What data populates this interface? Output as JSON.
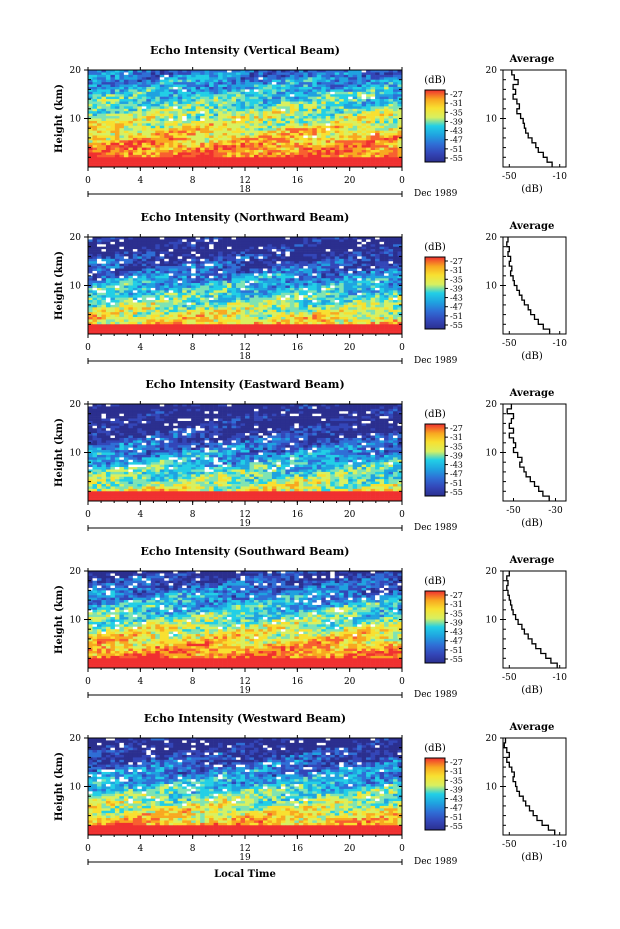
{
  "chart_data": [
    {
      "type": "heatmap",
      "title": "Echo Intensity (Vertical Beam)",
      "ylabel": "Height (km)",
      "ylim": [
        0,
        20
      ],
      "yticks": [
        "20",
        "10"
      ],
      "xlim": [
        0,
        24
      ],
      "xticks": [
        "0",
        "4",
        "8",
        "12",
        "16",
        "20",
        "0"
      ],
      "day_label": "18",
      "date_label": "Dec 1989",
      "colorbar_title": "(dB)",
      "colorbar_ticks": [
        "-27",
        "-31",
        "-35",
        "-39",
        "-43",
        "-47",
        "-51",
        "-55"
      ],
      "profile": {
        "title": "Average",
        "xlabel": "(dB)",
        "xticks": [
          "-50",
          "-10"
        ],
        "xlim": [
          -55,
          -5
        ],
        "ylim": [
          0,
          20
        ],
        "yticks": [
          "20",
          "10"
        ],
        "heights": [
          1,
          2,
          3,
          4,
          5,
          6,
          7,
          8,
          9,
          10,
          11,
          12,
          13,
          14,
          15,
          16,
          17,
          18,
          19,
          20
        ],
        "values": [
          -16,
          -20,
          -23,
          -27,
          -29,
          -32,
          -35,
          -37,
          -38,
          -39,
          -41,
          -44,
          -42,
          -44,
          -47,
          -45,
          -47,
          -43,
          -46,
          -48
        ]
      }
    },
    {
      "type": "heatmap",
      "title": "Echo Intensity (Northward Beam)",
      "ylabel": "Height (km)",
      "ylim": [
        0,
        20
      ],
      "yticks": [
        "20",
        "10"
      ],
      "xlim": [
        0,
        24
      ],
      "xticks": [
        "0",
        "4",
        "8",
        "12",
        "16",
        "20",
        "0"
      ],
      "day_label": "18",
      "date_label": "Dec 1989",
      "colorbar_title": "(dB)",
      "colorbar_ticks": [
        "-27",
        "-31",
        "-35",
        "-39",
        "-43",
        "-47",
        "-51",
        "-55"
      ],
      "profile": {
        "title": "Average",
        "xlabel": "(dB)",
        "xticks": [
          "-50",
          "-10"
        ],
        "xlim": [
          -55,
          -5
        ],
        "ylim": [
          0,
          20
        ],
        "yticks": [
          "20",
          "10"
        ],
        "heights": [
          1,
          2,
          3,
          4,
          5,
          6,
          7,
          8,
          9,
          10,
          11,
          12,
          13,
          14,
          15,
          16,
          17,
          18,
          19,
          20
        ],
        "values": [
          -18,
          -23,
          -27,
          -30,
          -33,
          -35,
          -38,
          -40,
          -42,
          -44,
          -46,
          -47,
          -49,
          -48,
          -50,
          -49,
          -51,
          -50,
          -52,
          -51
        ]
      }
    },
    {
      "type": "heatmap",
      "title": "Echo Intensity (Eastward Beam)",
      "ylabel": "Height (km)",
      "ylim": [
        0,
        20
      ],
      "yticks": [
        "20",
        "10"
      ],
      "xlim": [
        0,
        24
      ],
      "xticks": [
        "0",
        "4",
        "8",
        "12",
        "16",
        "20",
        "0"
      ],
      "day_label": "19",
      "date_label": "Dec 1989",
      "colorbar_title": "(dB)",
      "colorbar_ticks": [
        "-27",
        "-31",
        "-35",
        "-39",
        "-43",
        "-47",
        "-51",
        "-55"
      ],
      "profile": {
        "title": "Average",
        "xlabel": "(dB)",
        "xticks": [
          "-50",
          "-30"
        ],
        "xlim": [
          -55,
          -25
        ],
        "ylim": [
          0,
          20
        ],
        "yticks": [
          "20",
          "10"
        ],
        "heights": [
          1,
          2,
          3,
          4,
          5,
          6,
          7,
          8,
          9,
          10,
          11,
          12,
          13,
          14,
          15,
          16,
          17,
          18,
          19,
          20
        ],
        "values": [
          -33,
          -36,
          -38,
          -40,
          -42,
          -44,
          -45,
          -47,
          -46,
          -48,
          -50,
          -49,
          -50,
          -52,
          -50,
          -52,
          -51,
          -50,
          -53,
          -51
        ]
      }
    },
    {
      "type": "heatmap",
      "title": "Echo Intensity (Southward Beam)",
      "ylabel": "Height (km)",
      "ylim": [
        0,
        20
      ],
      "yticks": [
        "20",
        "10"
      ],
      "xlim": [
        0,
        24
      ],
      "xticks": [
        "0",
        "4",
        "8",
        "12",
        "16",
        "20",
        "0"
      ],
      "day_label": "19",
      "date_label": "Dec 1989",
      "colorbar_title": "(dB)",
      "colorbar_ticks": [
        "-27",
        "-31",
        "-35",
        "-39",
        "-43",
        "-47",
        "-51",
        "-55"
      ],
      "profile": {
        "title": "Average",
        "xlabel": "(dB)",
        "xticks": [
          "-50",
          "-10"
        ],
        "xlim": [
          -55,
          -5
        ],
        "ylim": [
          0,
          20
        ],
        "yticks": [
          "20",
          "10"
        ],
        "heights": [
          1,
          2,
          3,
          4,
          5,
          6,
          7,
          8,
          9,
          10,
          11,
          12,
          13,
          14,
          15,
          16,
          17,
          18,
          19,
          20
        ],
        "values": [
          -12,
          -17,
          -21,
          -25,
          -29,
          -32,
          -35,
          -38,
          -40,
          -43,
          -45,
          -47,
          -48,
          -49,
          -50,
          -51,
          -52,
          -51,
          -52,
          -50
        ]
      }
    },
    {
      "type": "heatmap",
      "title": "Echo Intensity (Westward Beam)",
      "ylabel": "Height (km)",
      "ylim": [
        0,
        20
      ],
      "yticks": [
        "20",
        "10"
      ],
      "xlim": [
        0,
        24
      ],
      "xticks": [
        "0",
        "4",
        "8",
        "12",
        "16",
        "20",
        "0"
      ],
      "day_label": "19",
      "date_label": "Dec 1989",
      "colorbar_title": "(dB)",
      "colorbar_ticks": [
        "-27",
        "-31",
        "-35",
        "-39",
        "-43",
        "-47",
        "-51",
        "-55"
      ],
      "xlabel": "Local Time",
      "profile": {
        "title": "Average",
        "xlabel": "(dB)",
        "xticks": [
          "-50",
          "-10"
        ],
        "xlim": [
          -55,
          -5
        ],
        "ylim": [
          0,
          20
        ],
        "yticks": [
          "20",
          "10"
        ],
        "heights": [
          1,
          2,
          3,
          4,
          5,
          6,
          7,
          8,
          9,
          10,
          11,
          12,
          13,
          14,
          15,
          16,
          17,
          18,
          19,
          20
        ],
        "values": [
          -14,
          -19,
          -24,
          -28,
          -31,
          -34,
          -37,
          -39,
          -42,
          -44,
          -45,
          -47,
          -46,
          -48,
          -50,
          -52,
          -50,
          -52,
          -54,
          -53
        ]
      }
    }
  ],
  "colors": {
    "scale": [
      "#2b2f8f",
      "#3346b8",
      "#2f6fd6",
      "#1fa2e0",
      "#22cfe6",
      "#7fe3b3",
      "#d8f060",
      "#f8e030",
      "#f8a820",
      "#f86030",
      "#f03030"
    ]
  }
}
